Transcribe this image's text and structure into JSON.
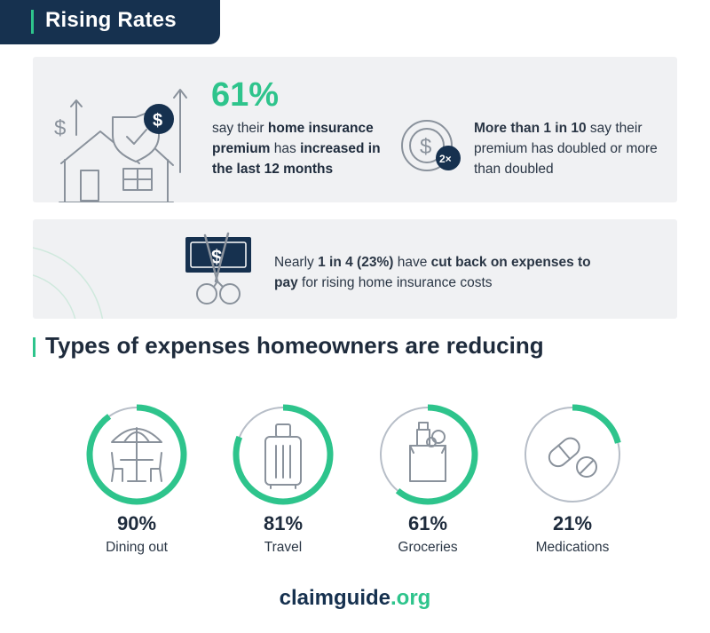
{
  "header": {
    "title": "Rising Rates"
  },
  "premium_stat": {
    "percent": "61%",
    "text_parts": [
      "say their ",
      "home insurance premium",
      " has ",
      "increased in the last 12 months"
    ]
  },
  "doubled_stat": {
    "badge": "2×",
    "text_parts": [
      "More than 1 in 10",
      " say their premium has doubled or more than doubled"
    ]
  },
  "cutback_stat": {
    "text_parts": [
      "Nearly ",
      "1 in 4 (23%)",
      " have ",
      "cut back on expenses to pay",
      " for rising home insurance costs"
    ]
  },
  "section": {
    "title": "Types of expenses homeowners are reducing"
  },
  "chart_data": {
    "type": "donut",
    "title": "Types of expenses homeowners are reducing",
    "unit": "%",
    "categories": [
      "Dining out",
      "Travel",
      "Groceries",
      "Medications"
    ],
    "values": [
      90,
      81,
      61,
      21
    ],
    "value_labels": [
      "90%",
      "81%",
      "61%",
      "21%"
    ],
    "icons": [
      "dining-table-umbrella",
      "suitcase",
      "grocery-bag",
      "pills"
    ],
    "ylim": [
      0,
      100
    ]
  },
  "colors": {
    "accent": "#2ec48c",
    "navy": "#16314f",
    "panel": "#f0f1f3",
    "ring_track": "#b7bec8"
  },
  "footer": {
    "brand_main": "claimguide",
    "brand_tld": ".org"
  }
}
